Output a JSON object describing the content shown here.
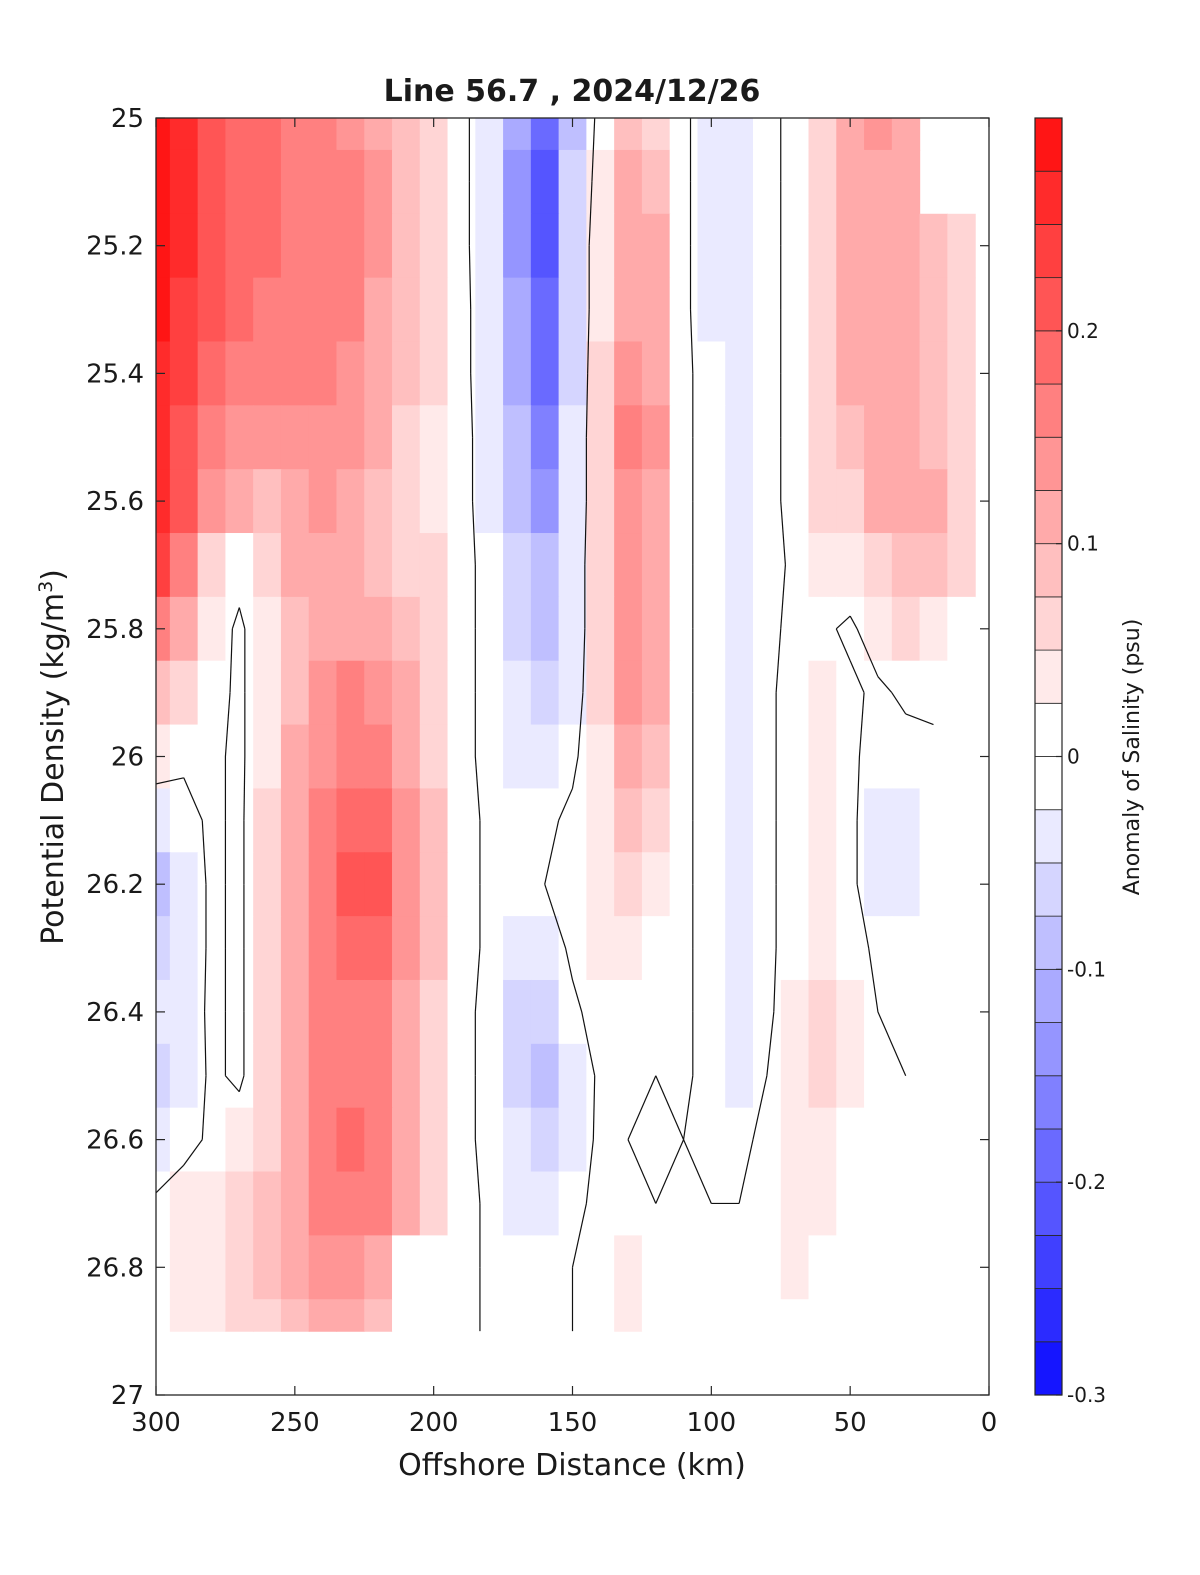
{
  "chart_data": {
    "type": "heatmap",
    "title": "Line 56.7 , 2024/12/26",
    "xlabel": "Offshore Distance (km)",
    "ylabel_main": "Potential Density (kg/m",
    "ylabel_sup": "3",
    "ylabel_close": ")",
    "xlim": [
      300,
      0
    ],
    "ylim": [
      25,
      27
    ],
    "y_reversed": true,
    "xticks": [
      300,
      250,
      200,
      150,
      100,
      50,
      0
    ],
    "xtick_labels": [
      "300",
      "250",
      "200",
      "150",
      "100",
      "50",
      "0"
    ],
    "yticks": [
      25,
      25.2,
      25.4,
      25.6,
      25.8,
      26,
      26.2,
      26.4,
      26.6,
      26.8,
      27
    ],
    "ytick_labels": [
      "25",
      "25.2",
      "25.4",
      "25.6",
      "25.8",
      "26",
      "26.2",
      "26.4",
      "26.6",
      "26.8",
      "27"
    ],
    "grid": false,
    "zero_contour": true,
    "data_y_max": 26.9,
    "colorbar": {
      "label": "Anomaly of Salinity (psu)",
      "range": [
        -0.3,
        0.3
      ],
      "levels": [
        -0.3,
        -0.275,
        -0.25,
        -0.225,
        -0.2,
        -0.175,
        -0.15,
        -0.125,
        -0.1,
        -0.075,
        -0.05,
        -0.025,
        0,
        0.025,
        0.05,
        0.075,
        0.1,
        0.125,
        0.15,
        0.175,
        0.2,
        0.225,
        0.25,
        0.275,
        0.3
      ],
      "ticks": [
        -0.3,
        -0.2,
        -0.1,
        0,
        0.1,
        0.2
      ],
      "tick_labels": [
        "-0.3",
        "-0.2",
        "-0.1",
        "0",
        "0.1",
        "0.2"
      ],
      "color_negative": "#0000ff",
      "color_positive": "#ff0000",
      "color_zero": "#ffffff"
    },
    "x": [
      300,
      290,
      280,
      270,
      260,
      250,
      240,
      230,
      220,
      210,
      200,
      190,
      180,
      170,
      160,
      150,
      140,
      130,
      120,
      110,
      100,
      90,
      80,
      70,
      60,
      50,
      40,
      30,
      20,
      10,
      0
    ],
    "y": [
      25.0,
      25.1,
      25.2,
      25.3,
      25.4,
      25.5,
      25.6,
      25.7,
      25.8,
      25.9,
      26.0,
      26.1,
      26.2,
      26.3,
      26.4,
      26.5,
      26.6,
      26.7,
      26.8,
      26.9
    ],
    "z": [
      [
        0.29,
        0.25,
        0.21,
        0.19,
        0.18,
        0.17,
        0.16,
        0.14,
        0.12,
        0.09,
        0.05,
        0.02,
        -0.05,
        -0.12,
        -0.2,
        -0.08,
        0.02,
        0.08,
        0.06,
        0.01,
        -0.03,
        -0.05,
        -0.02,
        0.02,
        0.06,
        0.1,
        0.14,
        0.12,
        null,
        null,
        null
      ],
      [
        0.29,
        0.25,
        0.21,
        0.19,
        0.18,
        0.17,
        0.17,
        0.15,
        0.13,
        0.09,
        0.05,
        0.02,
        -0.05,
        -0.13,
        -0.21,
        -0.07,
        0.03,
        0.1,
        0.09,
        0.01,
        -0.03,
        -0.05,
        -0.02,
        0.02,
        0.07,
        0.11,
        0.12,
        0.11,
        null,
        null,
        null
      ],
      [
        0.29,
        0.25,
        0.21,
        0.19,
        0.18,
        0.17,
        0.17,
        0.15,
        0.13,
        0.09,
        0.05,
        0.02,
        -0.05,
        -0.13,
        -0.21,
        -0.06,
        0.04,
        0.11,
        0.1,
        0.01,
        -0.03,
        -0.05,
        -0.02,
        0.02,
        0.07,
        0.11,
        0.11,
        0.1,
        0.08,
        0.05,
        null
      ],
      [
        0.28,
        0.24,
        0.2,
        0.18,
        0.17,
        0.16,
        0.16,
        0.15,
        0.12,
        0.09,
        0.05,
        0.02,
        -0.04,
        -0.12,
        -0.2,
        -0.06,
        0.04,
        0.12,
        0.11,
        0.01,
        -0.03,
        -0.05,
        -0.02,
        0.02,
        0.06,
        0.1,
        0.11,
        0.1,
        0.09,
        0.07,
        null
      ],
      [
        0.27,
        0.23,
        0.19,
        0.16,
        0.15,
        0.15,
        0.15,
        0.14,
        0.11,
        0.08,
        0.05,
        0.02,
        -0.04,
        -0.11,
        -0.18,
        -0.06,
        0.05,
        0.14,
        0.12,
        0.01,
        -0.02,
        -0.04,
        -0.02,
        0.02,
        0.06,
        0.1,
        0.11,
        0.11,
        0.09,
        0.07,
        null
      ],
      [
        0.26,
        0.22,
        0.17,
        0.14,
        0.13,
        0.13,
        0.14,
        0.13,
        0.1,
        0.07,
        0.04,
        0.02,
        -0.03,
        -0.09,
        -0.16,
        -0.05,
        0.05,
        0.15,
        0.13,
        0.01,
        -0.02,
        -0.04,
        -0.02,
        0.02,
        0.05,
        0.09,
        0.11,
        0.11,
        0.09,
        0.07,
        null
      ],
      [
        0.25,
        0.2,
        0.13,
        0.1,
        0.09,
        0.11,
        0.13,
        0.12,
        0.09,
        0.05,
        0.04,
        0.02,
        -0.03,
        -0.08,
        -0.13,
        -0.05,
        0.05,
        0.14,
        0.12,
        0.01,
        -0.02,
        -0.04,
        -0.02,
        0.02,
        0.05,
        0.07,
        0.1,
        0.11,
        0.1,
        0.07,
        null
      ],
      [
        0.23,
        0.16,
        0.06,
        0.02,
        0.06,
        0.1,
        0.12,
        0.12,
        0.09,
        0.07,
        0.05,
        0.02,
        -0.02,
        -0.07,
        -0.1,
        -0.04,
        0.05,
        0.13,
        0.12,
        0.01,
        -0.02,
        -0.04,
        -0.02,
        0.01,
        0.03,
        0.04,
        0.07,
        0.09,
        0.08,
        0.06,
        null
      ],
      [
        0.16,
        0.11,
        0.03,
        -0.01,
        0.04,
        0.09,
        0.12,
        0.12,
        0.1,
        0.08,
        0.06,
        0.02,
        -0.02,
        -0.06,
        -0.09,
        -0.04,
        0.05,
        0.13,
        0.12,
        0.01,
        -0.02,
        -0.04,
        -0.01,
        0.01,
        0.01,
        -0.01,
        0.03,
        0.05,
        0.04,
        0.02,
        null
      ],
      [
        0.09,
        0.06,
        0.02,
        -0.01,
        0.04,
        0.09,
        0.13,
        0.15,
        0.14,
        0.11,
        0.07,
        0.02,
        -0.02,
        -0.05,
        -0.07,
        -0.03,
        0.05,
        0.13,
        0.11,
        0.01,
        -0.02,
        -0.04,
        -0.01,
        0.02,
        0.03,
        0.01,
        -0.01,
        0.01,
        0.01,
        null,
        null
      ],
      [
        0.03,
        0.01,
        0.01,
        -0.01,
        0.04,
        0.1,
        0.14,
        0.17,
        0.17,
        0.12,
        0.07,
        0.02,
        -0.02,
        -0.04,
        -0.04,
        -0.01,
        0.04,
        0.11,
        0.09,
        0.01,
        -0.02,
        -0.04,
        -0.01,
        0.02,
        0.04,
        0.01,
        -0.02,
        -0.02,
        -0.01,
        null,
        null
      ],
      [
        -0.04,
        -0.02,
        0.01,
        -0.01,
        0.05,
        0.11,
        0.15,
        0.19,
        0.19,
        0.13,
        0.08,
        0.02,
        -0.01,
        -0.02,
        -0.01,
        0.01,
        0.03,
        0.09,
        0.06,
        0.01,
        -0.02,
        -0.04,
        -0.01,
        0.02,
        0.04,
        0.01,
        -0.03,
        -0.03,
        -0.02,
        null,
        null
      ],
      [
        -0.08,
        -0.04,
        0.01,
        -0.01,
        0.05,
        0.11,
        0.16,
        0.2,
        0.2,
        0.13,
        0.08,
        0.02,
        -0.01,
        -0.01,
        0.0,
        0.02,
        0.03,
        0.06,
        0.04,
        0.01,
        -0.02,
        -0.04,
        -0.01,
        0.02,
        0.03,
        0.01,
        -0.03,
        -0.03,
        -0.01,
        null,
        null
      ],
      [
        -0.07,
        -0.04,
        0.01,
        -0.01,
        0.05,
        0.11,
        0.16,
        0.19,
        0.18,
        0.13,
        0.08,
        0.02,
        -0.01,
        -0.03,
        -0.03,
        0.01,
        0.03,
        0.04,
        0.02,
        0.01,
        -0.02,
        -0.04,
        -0.01,
        0.02,
        0.04,
        0.02,
        -0.01,
        -0.02,
        -0.01,
        null,
        null
      ],
      [
        -0.05,
        -0.03,
        0.01,
        -0.01,
        0.05,
        0.11,
        0.15,
        0.16,
        0.15,
        0.12,
        0.07,
        0.02,
        -0.02,
        -0.06,
        -0.06,
        -0.01,
        0.02,
        0.02,
        0.01,
        0.01,
        -0.02,
        -0.04,
        -0.01,
        0.03,
        0.05,
        0.03,
        0.0,
        -0.01,
        null,
        null,
        null
      ],
      [
        -0.07,
        -0.04,
        0.01,
        -0.01,
        0.05,
        0.11,
        0.15,
        0.15,
        0.15,
        0.12,
        0.07,
        0.02,
        -0.02,
        -0.07,
        -0.1,
        -0.04,
        0.01,
        0.01,
        0.0,
        0.01,
        -0.02,
        -0.03,
        0.0,
        0.04,
        0.06,
        0.03,
        0.0,
        0.0,
        null,
        null,
        null
      ],
      [
        -0.05,
        -0.02,
        0.01,
        0.03,
        0.06,
        0.12,
        0.16,
        0.18,
        0.17,
        0.12,
        0.07,
        0.02,
        -0.02,
        -0.05,
        -0.07,
        -0.03,
        0.01,
        0.0,
        -0.01,
        0.0,
        -0.01,
        -0.01,
        0.01,
        0.03,
        0.04,
        0.02,
        0.0,
        0.0,
        null,
        null,
        null
      ],
      [
        0.01,
        0.03,
        0.04,
        0.06,
        0.08,
        0.12,
        0.15,
        0.17,
        0.16,
        0.12,
        0.07,
        0.02,
        -0.01,
        -0.03,
        -0.04,
        -0.01,
        0.01,
        0.02,
        0.0,
        0.0,
        0.0,
        0.0,
        0.02,
        0.03,
        0.03,
        0.01,
        0.0,
        0.0,
        null,
        null,
        null
      ],
      [
        0.02,
        0.03,
        0.04,
        0.06,
        0.08,
        0.11,
        0.13,
        0.13,
        0.1,
        0.0,
        0.0,
        0.02,
        -0.01,
        -0.02,
        -0.02,
        0.0,
        0.02,
        0.03,
        0.01,
        0.0,
        0.0,
        0.01,
        0.02,
        0.03,
        0.01,
        0.0,
        0.0,
        0.0,
        null,
        null,
        null
      ],
      [
        0.02,
        0.03,
        0.04,
        0.05,
        0.07,
        0.09,
        0.1,
        0.1,
        0.08,
        0.0,
        0.0,
        0.02,
        -0.01,
        -0.02,
        -0.02,
        0.0,
        0.02,
        0.03,
        0.01,
        0.0,
        0.0,
        0.01,
        0.02,
        0.02,
        0.0,
        0.0,
        0.0,
        0.0,
        null,
        null,
        null
      ]
    ]
  }
}
